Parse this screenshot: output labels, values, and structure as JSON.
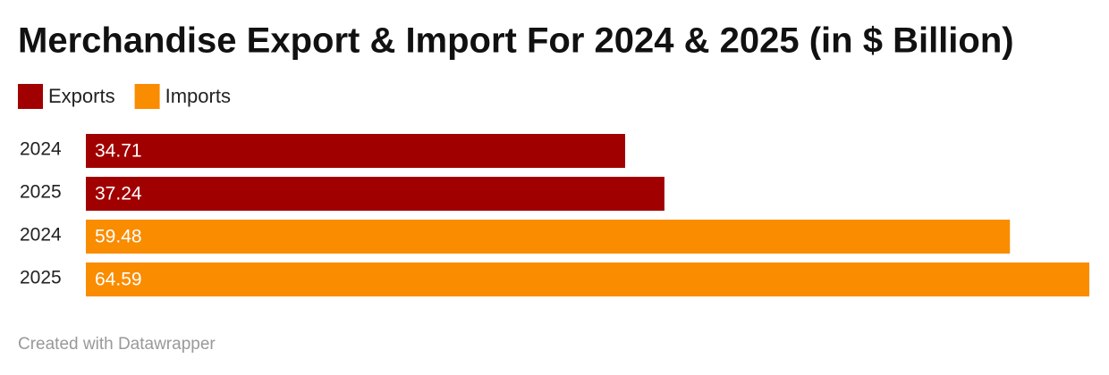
{
  "chart_data": {
    "type": "bar",
    "orientation": "horizontal",
    "title": "Merchandise Export & Import For 2024 & 2025 (in $ Billion)",
    "categories": [
      "2024",
      "2025",
      "2024",
      "2025"
    ],
    "series": [
      {
        "name": "Exports",
        "color": "#a10000",
        "values": [
          34.71,
          37.24,
          null,
          null
        ]
      },
      {
        "name": "Imports",
        "color": "#fa8c00",
        "values": [
          null,
          null,
          59.48,
          64.59
        ]
      }
    ],
    "credit": "Created with Datawrapper"
  }
}
